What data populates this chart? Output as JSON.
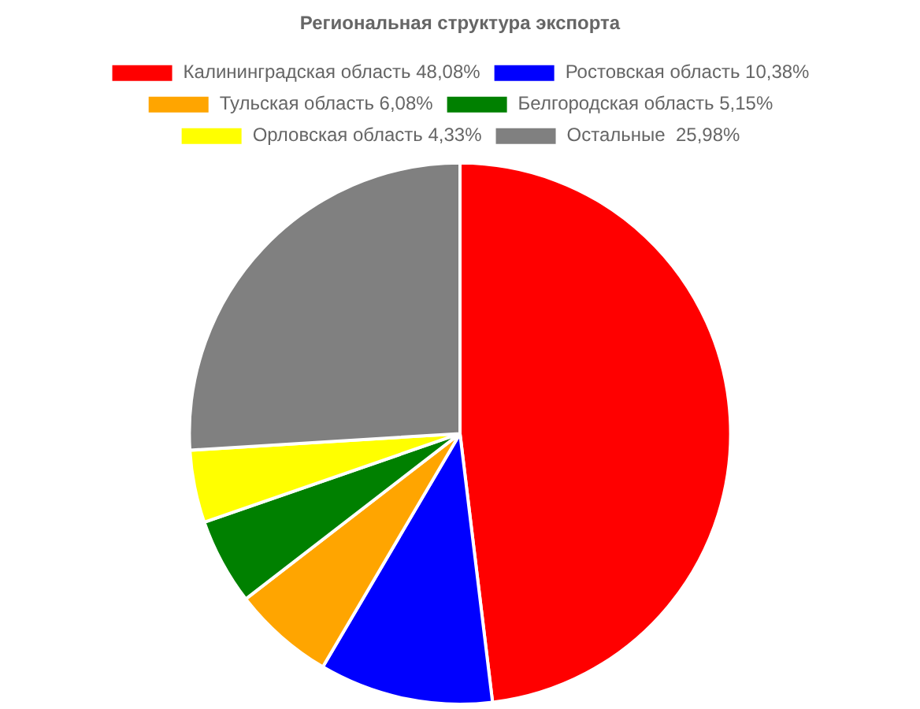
{
  "chart_data": {
    "type": "pie",
    "title": "Региональная структура экспорта",
    "categories": [
      "Калининградская область 48,08%",
      "Ростовская область 10,38%",
      "Тульская область 6,08%",
      "Белгородская область 5,15%",
      "Орловская область 4,33%",
      "Остальные  25,98%"
    ],
    "values": [
      48.08,
      10.38,
      6.08,
      5.15,
      4.33,
      25.98
    ],
    "colors": [
      "#ff0000",
      "#0000ff",
      "#ffa500",
      "#008000",
      "#ffff00",
      "#808080"
    ],
    "legend": "top"
  }
}
